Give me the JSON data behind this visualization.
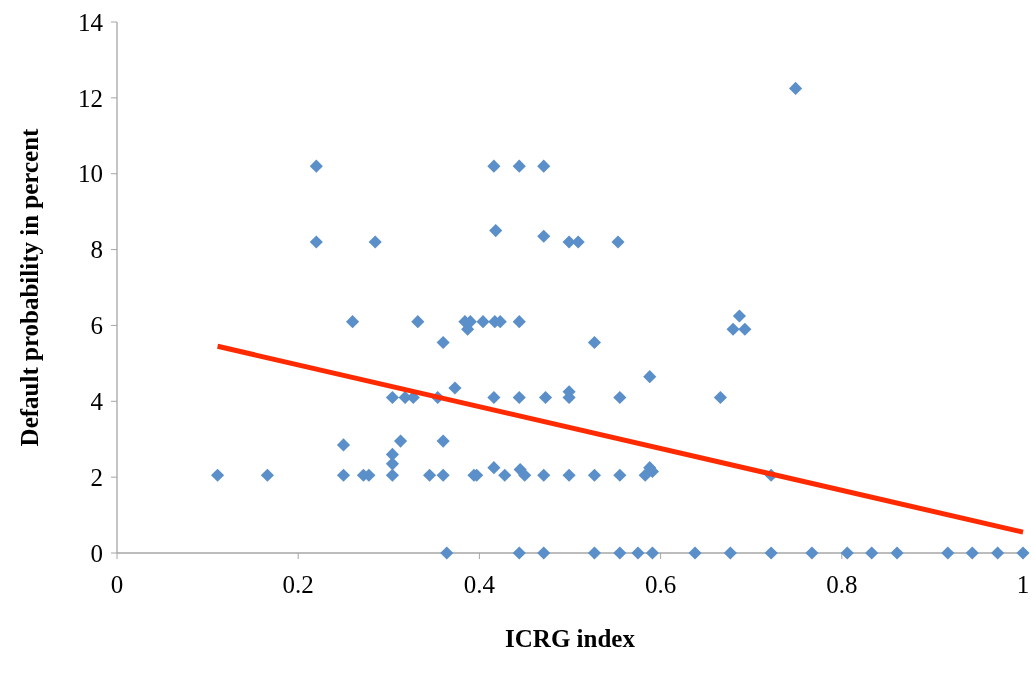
{
  "chart_data": {
    "type": "scatter",
    "xlabel": "ICRG index",
    "ylabel": "Default probability in percent",
    "xlim": [
      0,
      1
    ],
    "ylim": [
      0,
      14
    ],
    "xticks": [
      0,
      0.2,
      0.4,
      0.6,
      0.8,
      1
    ],
    "yticks": [
      0,
      2,
      4,
      6,
      8,
      10,
      12,
      14
    ],
    "grid": false,
    "marker": "diamond",
    "series": [
      {
        "color": "#5b8fc9",
        "x": [
          0.111,
          0.166,
          0.22,
          0.22,
          0.25,
          0.25,
          0.26,
          0.272,
          0.278,
          0.285,
          0.304,
          0.304,
          0.304,
          0.304,
          0.313,
          0.318,
          0.327,
          0.332,
          0.345,
          0.354,
          0.36,
          0.36,
          0.36,
          0.364,
          0.373,
          0.384,
          0.39,
          0.404,
          0.417,
          0.423,
          0.444,
          0.387,
          0.394,
          0.397,
          0.416,
          0.416,
          0.416,
          0.418,
          0.428,
          0.444,
          0.444,
          0.444,
          0.445,
          0.45,
          0.471,
          0.471,
          0.473,
          0.471,
          0.471,
          0.499,
          0.509,
          0.499,
          0.499,
          0.499,
          0.527,
          0.527,
          0.527,
          0.553,
          0.555,
          0.555,
          0.555,
          0.575,
          0.588,
          0.583,
          0.588,
          0.591,
          0.591,
          0.638,
          0.666,
          0.68,
          0.687,
          0.693,
          0.677,
          0.722,
          0.722,
          0.749,
          0.767,
          0.806,
          0.833,
          0.861,
          0.917,
          0.944,
          0.972,
          1.0
        ],
        "values": [
          2.05,
          2.05,
          10.2,
          8.2,
          2.05,
          2.85,
          6.1,
          2.05,
          2.05,
          8.2,
          2.05,
          2.35,
          2.6,
          4.1,
          2.95,
          4.1,
          4.1,
          6.1,
          2.05,
          4.1,
          5.55,
          2.95,
          2.05,
          0,
          4.35,
          6.1,
          6.1,
          6.1,
          6.1,
          6.1,
          6.1,
          5.9,
          2.05,
          2.05,
          4.1,
          2.25,
          10.2,
          8.5,
          2.05,
          10.2,
          4.1,
          0,
          2.2,
          2.05,
          10.2,
          8.35,
          4.1,
          2.05,
          0,
          8.2,
          8.2,
          4.25,
          4.1,
          2.05,
          5.55,
          2.05,
          0,
          8.2,
          4.1,
          2.05,
          0,
          0,
          4.65,
          2.05,
          2.25,
          2.15,
          0,
          0,
          4.1,
          5.9,
          6.25,
          5.9,
          0,
          2.05,
          0,
          12.25,
          0,
          0,
          0,
          0,
          0,
          0,
          0,
          0
        ]
      },
      {
        "type": "line",
        "color": "#ff2a00",
        "marker": "none",
        "x": [
          0.111,
          1.0
        ],
        "values": [
          5.45,
          0.55
        ]
      }
    ]
  }
}
